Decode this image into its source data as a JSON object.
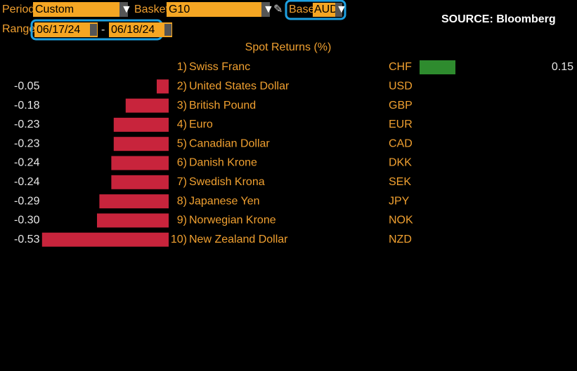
{
  "toolbar": {
    "period_label": "Period",
    "period_value": "Custom",
    "basket_label": "Basket",
    "basket_value": "G10",
    "base_label": "Base",
    "base_value": "AUD",
    "range_label": "Range",
    "range_start": "06/17/24",
    "range_separator": "-",
    "range_end": "06/18/24"
  },
  "source": "SOURCE: Bloomberg",
  "chart_data": {
    "type": "bar",
    "title": "Spot Returns (%)",
    "ranks": [
      "1)",
      "2)",
      "3)",
      "4)",
      "5)",
      "6)",
      "7)",
      "8)",
      "9)",
      "10)"
    ],
    "categories": [
      "Swiss Franc",
      "United States Dollar",
      "British Pound",
      "Euro",
      "Canadian Dollar",
      "Danish Krone",
      "Swedish Krona",
      "Japanese Yen",
      "Norwegian Krone",
      "New Zealand Dollar"
    ],
    "codes": [
      "CHF",
      "USD",
      "GBP",
      "EUR",
      "CAD",
      "DKK",
      "SEK",
      "JPY",
      "NOK",
      "NZD"
    ],
    "values": [
      0.15,
      -0.05,
      -0.18,
      -0.23,
      -0.23,
      -0.24,
      -0.24,
      -0.29,
      -0.3,
      -0.53
    ],
    "value_labels": [
      "0.15",
      "-0.05",
      "-0.18",
      "-0.23",
      "-0.23",
      "-0.24",
      "-0.24",
      "-0.29",
      "-0.30",
      "-0.53"
    ],
    "negative_color": "#c8243c",
    "positive_color": "#2e8b2e"
  }
}
